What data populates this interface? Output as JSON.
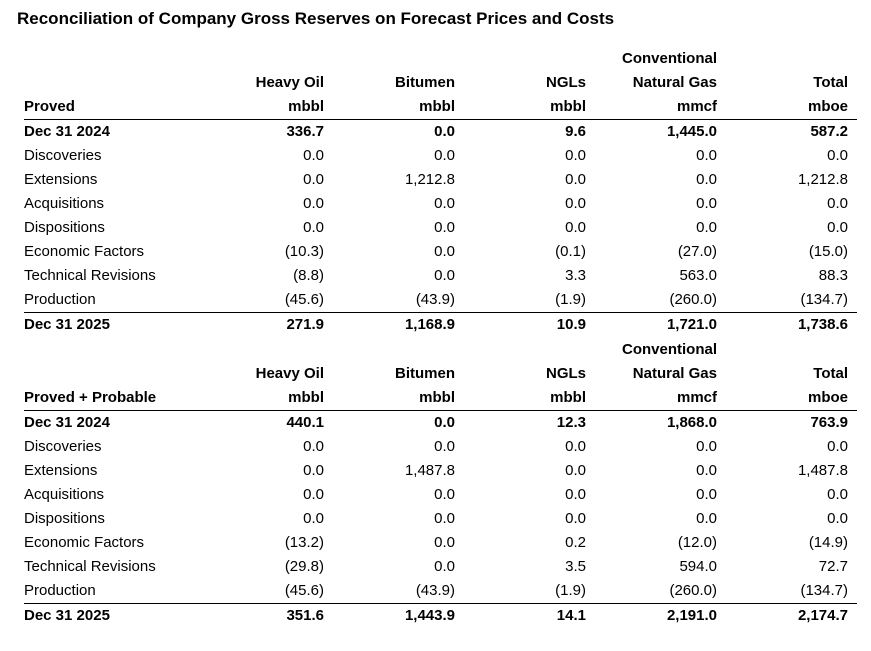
{
  "title": "Reconciliation of Company Gross Reserves on Forecast Prices and Costs",
  "columns": [
    {
      "line1": "",
      "line2": "Heavy Oil",
      "unit": "mbbl"
    },
    {
      "line1": "",
      "line2": "Bitumen",
      "unit": "mbbl"
    },
    {
      "line1": "",
      "line2": "NGLs",
      "unit": "mbbl"
    },
    {
      "line1": "Conventional",
      "line2": "Natural Gas",
      "unit": "mmcf"
    },
    {
      "line1": "",
      "line2": "Total",
      "unit": "mboe"
    }
  ],
  "sections": [
    {
      "label": "Proved",
      "rows": [
        {
          "name": "Dec 31 2024",
          "values": [
            "336.7",
            "0.0",
            "9.6",
            "1,445.0",
            "587.2"
          ]
        },
        {
          "name": "Discoveries",
          "values": [
            "0.0",
            "0.0",
            "0.0",
            "0.0",
            "0.0"
          ]
        },
        {
          "name": "Extensions",
          "values": [
            "0.0",
            "1,212.8",
            "0.0",
            "0.0",
            "1,212.8"
          ]
        },
        {
          "name": "Acquisitions",
          "values": [
            "0.0",
            "0.0",
            "0.0",
            "0.0",
            "0.0"
          ]
        },
        {
          "name": "Dispositions",
          "values": [
            "0.0",
            "0.0",
            "0.0",
            "0.0",
            "0.0"
          ]
        },
        {
          "name": "Economic Factors",
          "values": [
            "(10.3)",
            "0.0",
            "(0.1)",
            "(27.0)",
            "(15.0)"
          ]
        },
        {
          "name": "Technical Revisions",
          "values": [
            "(8.8)",
            "0.0",
            "3.3",
            "563.0",
            "88.3"
          ]
        },
        {
          "name": "Production",
          "values": [
            "(45.6)",
            "(43.9)",
            "(1.9)",
            "(260.0)",
            "(134.7)"
          ]
        },
        {
          "name": "Dec 31 2025",
          "values": [
            "271.9",
            "1,168.9",
            "10.9",
            "1,721.0",
            "1,738.6"
          ]
        }
      ]
    },
    {
      "label": "Proved + Probable",
      "rows": [
        {
          "name": "Dec 31 2024",
          "values": [
            "440.1",
            "0.0",
            "12.3",
            "1,868.0",
            "763.9"
          ]
        },
        {
          "name": "Discoveries",
          "values": [
            "0.0",
            "0.0",
            "0.0",
            "0.0",
            "0.0"
          ]
        },
        {
          "name": "Extensions",
          "values": [
            "0.0",
            "1,487.8",
            "0.0",
            "0.0",
            "1,487.8"
          ]
        },
        {
          "name": "Acquisitions",
          "values": [
            "0.0",
            "0.0",
            "0.0",
            "0.0",
            "0.0"
          ]
        },
        {
          "name": "Dispositions",
          "values": [
            "0.0",
            "0.0",
            "0.0",
            "0.0",
            "0.0"
          ]
        },
        {
          "name": "Economic Factors",
          "values": [
            "(13.2)",
            "0.0",
            "0.2",
            "(12.0)",
            "(14.9)"
          ]
        },
        {
          "name": "Technical Revisions",
          "values": [
            "(29.8)",
            "0.0",
            "3.5",
            "594.0",
            "72.7"
          ]
        },
        {
          "name": "Production",
          "values": [
            "(45.6)",
            "(43.9)",
            "(1.9)",
            "(260.0)",
            "(134.7)"
          ]
        },
        {
          "name": "Dec 31 2025",
          "values": [
            "351.6",
            "1,443.9",
            "14.1",
            "2,191.0",
            "2,174.7"
          ]
        }
      ]
    }
  ]
}
